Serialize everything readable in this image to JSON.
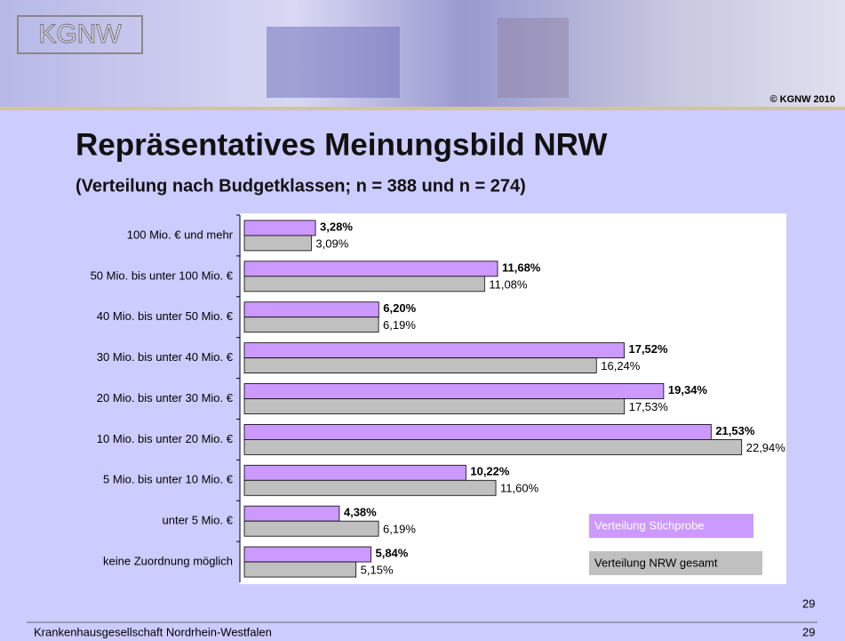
{
  "header": {
    "logo": "KGNW",
    "copyright": "© KGNW 2010"
  },
  "chart_data": {
    "type": "hbar",
    "title": "Repräsentatives Meinungsbild NRW",
    "subtitle": "(Verteilung nach Budgetklassen; n = 388 und n = 274)",
    "categories": [
      "100 Mio. € und mehr",
      "50 Mio. bis unter 100 Mio. €",
      "40 Mio. bis unter 50 Mio. €",
      "30 Mio. bis unter 40 Mio. €",
      "20 Mio. bis unter 30 Mio. €",
      "10 Mio. bis unter 20 Mio. €",
      "5 Mio. bis unter 10 Mio. €",
      "unter 5 Mio. €",
      "keine Zuordnung möglich"
    ],
    "series": [
      {
        "name": "Verteilung Stichprobe",
        "color": "#cc99ff",
        "values": [
          3.28,
          11.68,
          6.2,
          17.52,
          19.34,
          21.53,
          10.22,
          4.38,
          5.84
        ],
        "value_labels": [
          "3,28%",
          "11,68%",
          "6,20%",
          "17,52%",
          "19,34%",
          "21,53%",
          "10,22%",
          "4,38%",
          "5,84%"
        ]
      },
      {
        "name": "Verteilung NRW gesamt",
        "color": "#c0c0c0",
        "values": [
          3.09,
          11.08,
          6.19,
          16.24,
          17.53,
          22.94,
          11.6,
          6.19,
          5.15
        ],
        "value_labels": [
          "3,09%",
          "11,08%",
          "6,19%",
          "16,24%",
          "17,53%",
          "22,94%",
          "11,60%",
          "6,19%",
          "5,15%"
        ]
      }
    ],
    "xlim": [
      0,
      25
    ],
    "legend": "bottom-right"
  },
  "footer": {
    "organization": "Krankenhausgesellschaft Nordrhein-Westfalen",
    "slide_number": "29",
    "page_number": "29"
  }
}
